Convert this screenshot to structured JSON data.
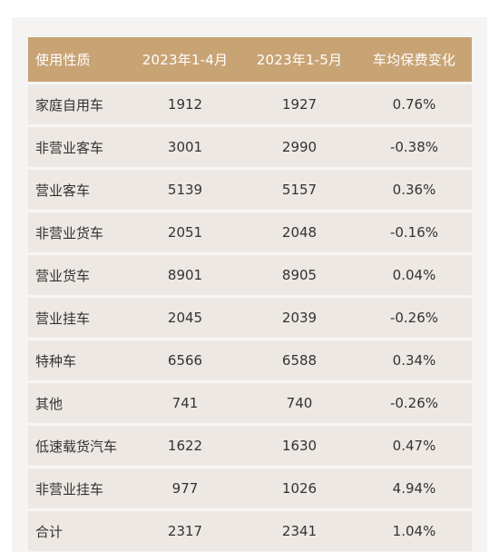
{
  "table": {
    "headers": [
      "使用性质",
      "2023年1-4月",
      "2023年1-5月",
      "车均保费变化"
    ],
    "rows": [
      {
        "type": "家庭自用车",
        "apr": "1912",
        "may": "1927",
        "change": "0.76%"
      },
      {
        "type": "非营业客车",
        "apr": "3001",
        "may": "2990",
        "change": "-0.38%"
      },
      {
        "type": "营业客车",
        "apr": "5139",
        "may": "5157",
        "change": "0.36%"
      },
      {
        "type": "非营业货车",
        "apr": "2051",
        "may": "2048",
        "change": "-0.16%"
      },
      {
        "type": "营业货车",
        "apr": "8901",
        "may": "8905",
        "change": "0.04%"
      },
      {
        "type": "营业挂车",
        "apr": "2045",
        "may": "2039",
        "change": "-0.26%"
      },
      {
        "type": "特种车",
        "apr": "6566",
        "may": "6588",
        "change": "0.34%"
      },
      {
        "type": "其他",
        "apr": "741",
        "may": "740",
        "change": "-0.26%"
      },
      {
        "type": "低速载货汽车",
        "apr": "1622",
        "may": "1630",
        "change": "0.47%"
      },
      {
        "type": "非营业挂车",
        "apr": "977",
        "may": "1026",
        "change": "4.94%"
      },
      {
        "type": "合计",
        "apr": "2317",
        "may": "2341",
        "change": "1.04%"
      }
    ]
  },
  "colors": {
    "header_bg": "#c8a374",
    "row_bg": "#ede8e3",
    "panel_bg": "#f5f4f2"
  }
}
